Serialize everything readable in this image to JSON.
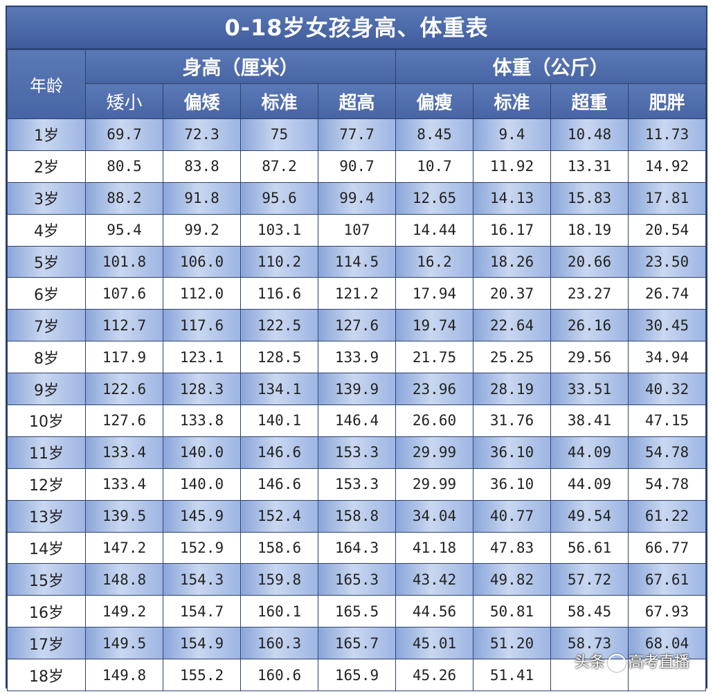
{
  "title": "0-18岁女孩身高、体重表",
  "header": {
    "age_label": "年龄",
    "height_group": "身高（厘米）",
    "weight_group": "体重（公斤）",
    "height_cols": [
      "矮小",
      "偏矮",
      "标准",
      "超高"
    ],
    "weight_cols": [
      "偏瘦",
      "标准",
      "超重",
      "肥胖"
    ]
  },
  "rows": [
    {
      "age": "1岁",
      "h": [
        "69.7",
        "72.3",
        "75",
        "77.7"
      ],
      "w": [
        "8.45",
        "9.4",
        "10.48",
        "11.73"
      ]
    },
    {
      "age": "2岁",
      "h": [
        "80.5",
        "83.8",
        "87.2",
        "90.7"
      ],
      "w": [
        "10.7",
        "11.92",
        "13.31",
        "14.92"
      ]
    },
    {
      "age": "3岁",
      "h": [
        "88.2",
        "91.8",
        "95.6",
        "99.4"
      ],
      "w": [
        "12.65",
        "14.13",
        "15.83",
        "17.81"
      ]
    },
    {
      "age": "4岁",
      "h": [
        "95.4",
        "99.2",
        "103.1",
        "107"
      ],
      "w": [
        "14.44",
        "16.17",
        "18.19",
        "20.54"
      ]
    },
    {
      "age": "5岁",
      "h": [
        "101.8",
        "106.0",
        "110.2",
        "114.5"
      ],
      "w": [
        "16.2",
        "18.26",
        "20.66",
        "23.50"
      ]
    },
    {
      "age": "6岁",
      "h": [
        "107.6",
        "112.0",
        "116.6",
        "121.2"
      ],
      "w": [
        "17.94",
        "20.37",
        "23.27",
        "26.74"
      ]
    },
    {
      "age": "7岁",
      "h": [
        "112.7",
        "117.6",
        "122.5",
        "127.6"
      ],
      "w": [
        "19.74",
        "22.64",
        "26.16",
        "30.45"
      ]
    },
    {
      "age": "8岁",
      "h": [
        "117.9",
        "123.1",
        "128.5",
        "133.9"
      ],
      "w": [
        "21.75",
        "25.25",
        "29.56",
        "34.94"
      ]
    },
    {
      "age": "9岁",
      "h": [
        "122.6",
        "128.3",
        "134.1",
        "139.9"
      ],
      "w": [
        "23.96",
        "28.19",
        "33.51",
        "40.32"
      ]
    },
    {
      "age": "10岁",
      "h": [
        "127.6",
        "133.8",
        "140.1",
        "146.4"
      ],
      "w": [
        "26.60",
        "31.76",
        "38.41",
        "47.15"
      ]
    },
    {
      "age": "11岁",
      "h": [
        "133.4",
        "140.0",
        "146.6",
        "153.3"
      ],
      "w": [
        "29.99",
        "36.10",
        "44.09",
        "54.78"
      ]
    },
    {
      "age": "12岁",
      "h": [
        "133.4",
        "140.0",
        "146.6",
        "153.3"
      ],
      "w": [
        "29.99",
        "36.10",
        "44.09",
        "54.78"
      ]
    },
    {
      "age": "13岁",
      "h": [
        "139.5",
        "145.9",
        "152.4",
        "158.8"
      ],
      "w": [
        "34.04",
        "40.77",
        "49.54",
        "61.22"
      ]
    },
    {
      "age": "14岁",
      "h": [
        "147.2",
        "152.9",
        "158.6",
        "164.3"
      ],
      "w": [
        "41.18",
        "47.83",
        "56.61",
        "66.77"
      ]
    },
    {
      "age": "15岁",
      "h": [
        "148.8",
        "154.3",
        "159.8",
        "165.3"
      ],
      "w": [
        "43.42",
        "49.82",
        "57.72",
        "67.61"
      ]
    },
    {
      "age": "16岁",
      "h": [
        "149.2",
        "154.7",
        "160.1",
        "165.5"
      ],
      "w": [
        "44.56",
        "50.81",
        "58.45",
        "67.93"
      ]
    },
    {
      "age": "17岁",
      "h": [
        "149.5",
        "154.9",
        "160.3",
        "165.7"
      ],
      "w": [
        "45.01",
        "51.20",
        "58.73",
        "68.04"
      ]
    },
    {
      "age": "18岁",
      "h": [
        "149.8",
        "155.2",
        "160.6",
        "165.9"
      ],
      "w": [
        "45.26",
        "51.41",
        "",
        ""
      ]
    }
  ],
  "watermark": {
    "left": "头条",
    "right": "高考直播",
    "icon": "at-circle-icon"
  }
}
